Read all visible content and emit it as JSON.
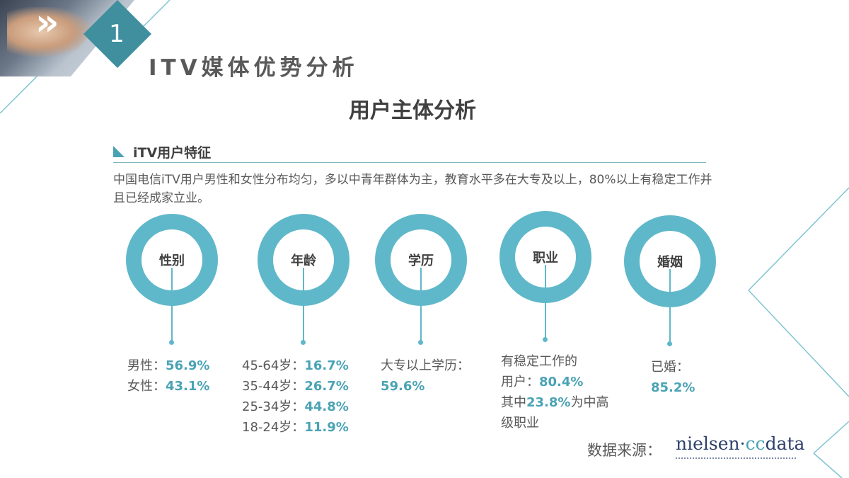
{
  "header": {
    "section_number": "1",
    "section_title": "ITV媒体优势分析",
    "page_title": "用户主体分析",
    "chevron": "»"
  },
  "subsection": {
    "title": "iTV用户特征",
    "description": "中国电信iTV用户男性和女性分布均匀，多以中青年群体为主，教育水平多在大专及以上，80%以上有稳定工作并且已经成家立业。"
  },
  "categories": [
    {
      "label": "性别"
    },
    {
      "label": "年龄"
    },
    {
      "label": "学历"
    },
    {
      "label": "职业"
    },
    {
      "label": "婚姻"
    }
  ],
  "stats": {
    "gender": {
      "male_label": "男性：",
      "male_value": "56.9%",
      "female_label": "女性：",
      "female_value": "43.1%"
    },
    "age": {
      "r1_label": "45-64岁：",
      "r1_value": "16.7%",
      "r2_label": "35-44岁：",
      "r2_value": "26.7%",
      "r3_label": "25-34岁：",
      "r3_value": "44.8%",
      "r4_label": "18-24岁：",
      "r4_value": "11.9%"
    },
    "education": {
      "label": "大专以上学历：",
      "value": "59.6%"
    },
    "occupation": {
      "line1": "有稳定工作的",
      "line2_label": "用户：",
      "line2_value": "80.4%",
      "line3_prefix": "其中",
      "line3_value": "23.8%",
      "line3_suffix": "为中高",
      "line4": "级职业"
    },
    "marriage": {
      "label": "已婚：",
      "value": "85.2%"
    }
  },
  "source": {
    "label": "数据来源：",
    "logo_a": "nielsen·",
    "logo_b": "cc",
    "logo_c": "data"
  },
  "colors": {
    "accent": "#5fb8c9",
    "accent_text": "#4aa3b4",
    "text": "#595959"
  }
}
